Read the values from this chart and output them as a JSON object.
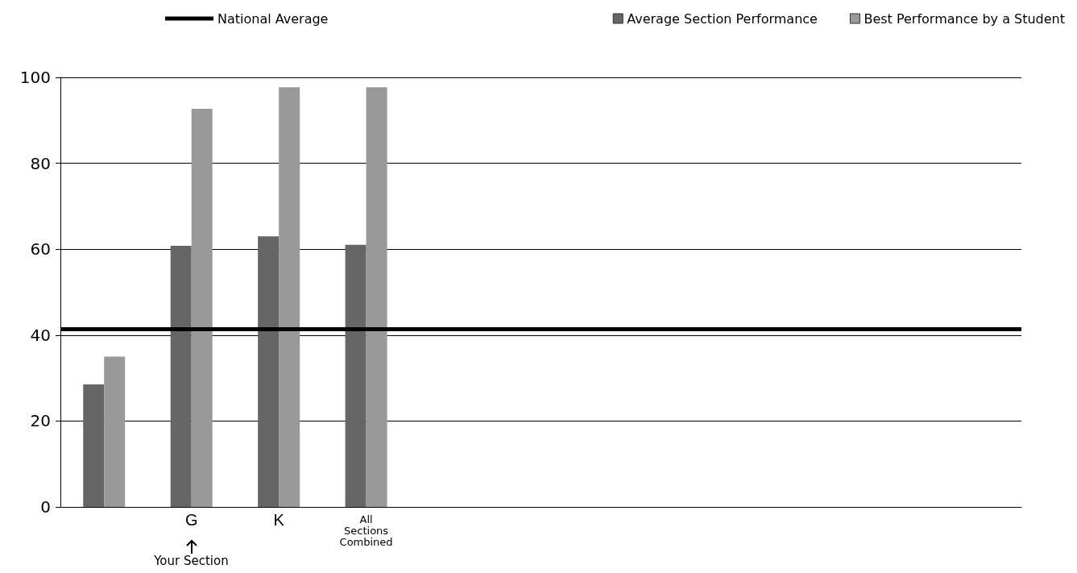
{
  "chart_data": {
    "type": "bar",
    "categories": [
      null,
      "G",
      "K",
      "All Sections Combined",
      null,
      null,
      null,
      null,
      null,
      null,
      null
    ],
    "series": [
      {
        "name": "Average Section Performance",
        "color": "#666666",
        "values": [
          28.5,
          60.8,
          63.0,
          61.0,
          null,
          null,
          null,
          null,
          null,
          null,
          null
        ]
      },
      {
        "name": "Best Performance by a Student",
        "color": "#999999",
        "values": [
          35.0,
          92.7,
          97.7,
          97.7,
          null,
          null,
          null,
          null,
          null,
          null,
          null
        ]
      }
    ],
    "ref_lines": [
      {
        "axis": "y",
        "value": 41.5,
        "label": "National Average",
        "color": "#000000",
        "line_style": "solid"
      }
    ],
    "annotations": [
      "Your Section"
    ],
    "ylim": [
      0,
      100
    ],
    "yticks": [
      0,
      20,
      40,
      60,
      80,
      100
    ],
    "grid": "y",
    "legend": "top"
  }
}
